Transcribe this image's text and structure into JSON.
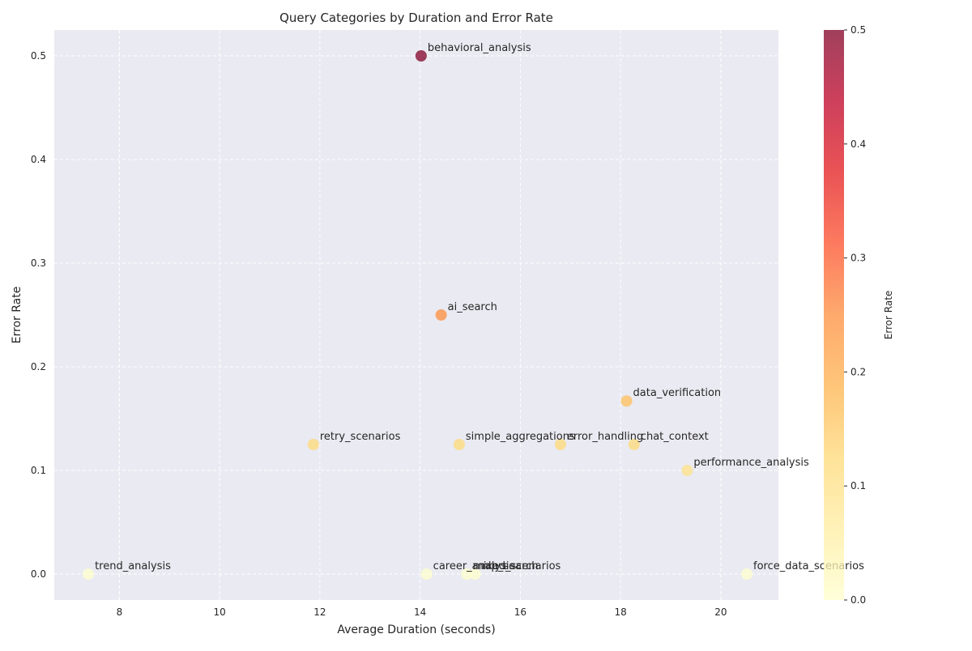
{
  "chart_data": {
    "type": "scatter",
    "title": "Query Categories by Duration and Error Rate",
    "xlabel": "Average Duration (seconds)",
    "ylabel": "Error Rate",
    "xlim": [
      6.7,
      21.15
    ],
    "ylim": [
      -0.025,
      0.525
    ],
    "x_ticks": [
      8,
      10,
      12,
      14,
      16,
      18,
      20
    ],
    "y_ticks": [
      0.0,
      0.1,
      0.2,
      0.3,
      0.4,
      0.5
    ],
    "grid": true,
    "grid_style": "dashed",
    "colormap": "YlOrRd",
    "colorbar": {
      "label": "Error Rate",
      "range": [
        0.0,
        0.5
      ],
      "ticks": [
        0.0,
        0.1,
        0.2,
        0.3,
        0.4,
        0.5
      ],
      "colors": [
        "#ffffcc",
        "#ffeda0",
        "#fed976",
        "#feb24c",
        "#fd8d3c",
        "#fc4e2a",
        "#e31a1c",
        "#bd0026",
        "#800026"
      ]
    },
    "points": [
      {
        "label": "behavioral_analysis",
        "x": 14.02,
        "y": 0.5
      },
      {
        "label": "ai_search",
        "x": 14.42,
        "y": 0.25
      },
      {
        "label": "data_verification",
        "x": 18.12,
        "y": 0.167
      },
      {
        "label": "retry_scenarios",
        "x": 11.87,
        "y": 0.125
      },
      {
        "label": "simple_aggregations",
        "x": 14.78,
        "y": 0.125
      },
      {
        "label": "error_handling",
        "x": 16.8,
        "y": 0.125
      },
      {
        "label": "chat_context",
        "x": 18.27,
        "y": 0.125
      },
      {
        "label": "performance_analysis",
        "x": 19.33,
        "y": 0.1
      },
      {
        "label": "trend_analysis",
        "x": 7.38,
        "y": 0.0
      },
      {
        "label": "career_analysis",
        "x": 14.13,
        "y": 0.0
      },
      {
        "label": "mixed_scenarios",
        "x": 14.93,
        "y": 0.0
      },
      {
        "label": "nlp_search",
        "x": 15.1,
        "y": 0.0
      },
      {
        "label": "force_data_scenarios",
        "x": 20.52,
        "y": 0.0
      }
    ]
  }
}
